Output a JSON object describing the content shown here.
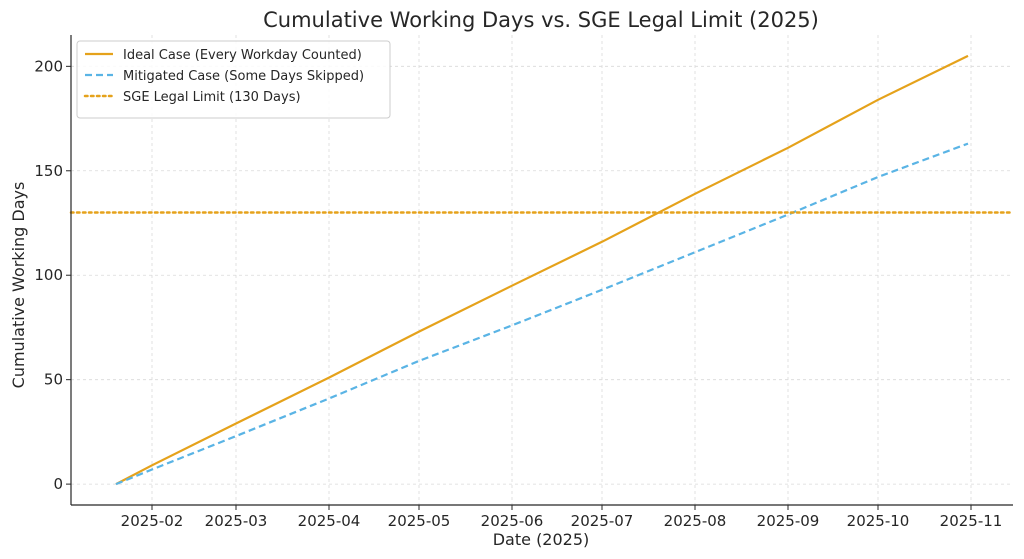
{
  "chart_data": {
    "type": "line",
    "title": "Cumulative Working Days vs. SGE Legal Limit (2025)",
    "xlabel": "Date (2025)",
    "ylabel": "Cumulative Working Days",
    "x_ticks": [
      "2025-02",
      "2025-03",
      "2025-04",
      "2025-05",
      "2025-06",
      "2025-07",
      "2025-08",
      "2025-09",
      "2025-10",
      "2025-11"
    ],
    "y_ticks": [
      0,
      50,
      100,
      150,
      200
    ],
    "xlim": [
      "2025-01-05",
      "2025-11-15"
    ],
    "ylim": [
      -10,
      215
    ],
    "grid": true,
    "legend_position": "top-left",
    "series": [
      {
        "name": "Ideal Case (Every Workday Counted)",
        "color": "#E5A21B",
        "style": "solid",
        "x": [
          "2025-01-20",
          "2025-02-01",
          "2025-03-01",
          "2025-04-01",
          "2025-05-01",
          "2025-06-01",
          "2025-07-01",
          "2025-08-01",
          "2025-09-01",
          "2025-10-01",
          "2025-10-31"
        ],
        "y": [
          0,
          9,
          29,
          51,
          73,
          95,
          116,
          139,
          161,
          184,
          205
        ]
      },
      {
        "name": "Mitigated Case (Some Days Skipped)",
        "color": "#5AB4E5",
        "style": "dashed",
        "x": [
          "2025-01-20",
          "2025-02-01",
          "2025-03-01",
          "2025-04-01",
          "2025-05-01",
          "2025-06-01",
          "2025-07-01",
          "2025-08-01",
          "2025-09-01",
          "2025-10-01",
          "2025-10-31"
        ],
        "y": [
          0,
          7,
          23,
          41,
          59,
          76,
          93,
          111,
          129,
          147,
          163
        ]
      },
      {
        "name": "SGE Legal Limit (130 Days)",
        "color": "#E5A21B",
        "style": "dotted",
        "constant": 130
      }
    ]
  }
}
